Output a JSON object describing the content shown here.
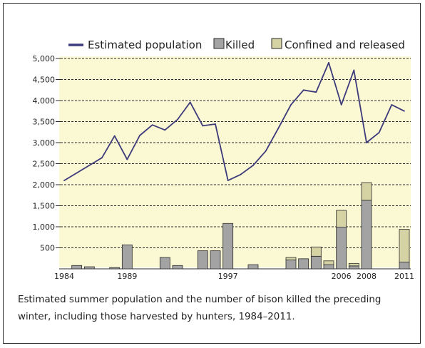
{
  "caption": "Estimated summer population and the number of bison killed the preceding winter, including those harvested by hunters, 1984–2011.",
  "colors": {
    "plot_background": "#fbf8d4",
    "population_line": "#3c3a7a",
    "killed": "#a3a3a3",
    "confined_and_released": "#d5d3a4",
    "grid": "#2b2b2b"
  },
  "chart_data": {
    "type": "bar",
    "x": [
      1984,
      1985,
      1986,
      1987,
      1988,
      1989,
      1990,
      1991,
      1992,
      1993,
      1994,
      1995,
      1996,
      1997,
      1998,
      1999,
      2000,
      2001,
      2002,
      2003,
      2004,
      2005,
      2006,
      2007,
      2008,
      2009,
      2010,
      2011
    ],
    "xtick_labels": [
      "1984",
      "1989",
      "1997",
      "2006",
      "2008",
      "2011"
    ],
    "xtick_values": [
      1984,
      1989,
      1997,
      2006,
      2008,
      2011
    ],
    "ylim": [
      0,
      5000
    ],
    "yticks": [
      "5,000",
      "4,500",
      "4,000",
      "3,500",
      "3,000",
      "2,500",
      "2,000",
      "1,500",
      "1,000",
      "500"
    ],
    "ytick_values": [
      5000,
      4500,
      4000,
      3500,
      3000,
      2500,
      2000,
      1500,
      1000,
      500
    ],
    "legend": {
      "position": "top",
      "items": [
        "Estimated population",
        "Killed",
        "Confined and released"
      ]
    },
    "grid": true,
    "series": [
      {
        "name": "Estimated population",
        "kind": "line",
        "values": [
          2100,
          2280,
          2460,
          2640,
          3160,
          2600,
          3170,
          3420,
          3300,
          3550,
          3960,
          3400,
          3440,
          2100,
          2240,
          2460,
          2800,
          3340,
          3900,
          4250,
          4200,
          4900,
          3900,
          4720,
          3000,
          3240,
          3900,
          3750
        ]
      },
      {
        "name": "Killed",
        "kind": "bar",
        "values": [
          0,
          80,
          50,
          0,
          30,
          570,
          0,
          0,
          270,
          80,
          0,
          430,
          430,
          1080,
          0,
          100,
          0,
          0,
          210,
          240,
          300,
          100,
          990,
          70,
          1630,
          0,
          0,
          160
        ]
      },
      {
        "name": "Confined and released",
        "kind": "bar",
        "values": [
          0,
          0,
          0,
          0,
          0,
          0,
          0,
          0,
          0,
          0,
          0,
          0,
          0,
          0,
          0,
          0,
          0,
          0,
          60,
          0,
          220,
          90,
          400,
          60,
          420,
          0,
          0,
          780
        ]
      }
    ]
  }
}
